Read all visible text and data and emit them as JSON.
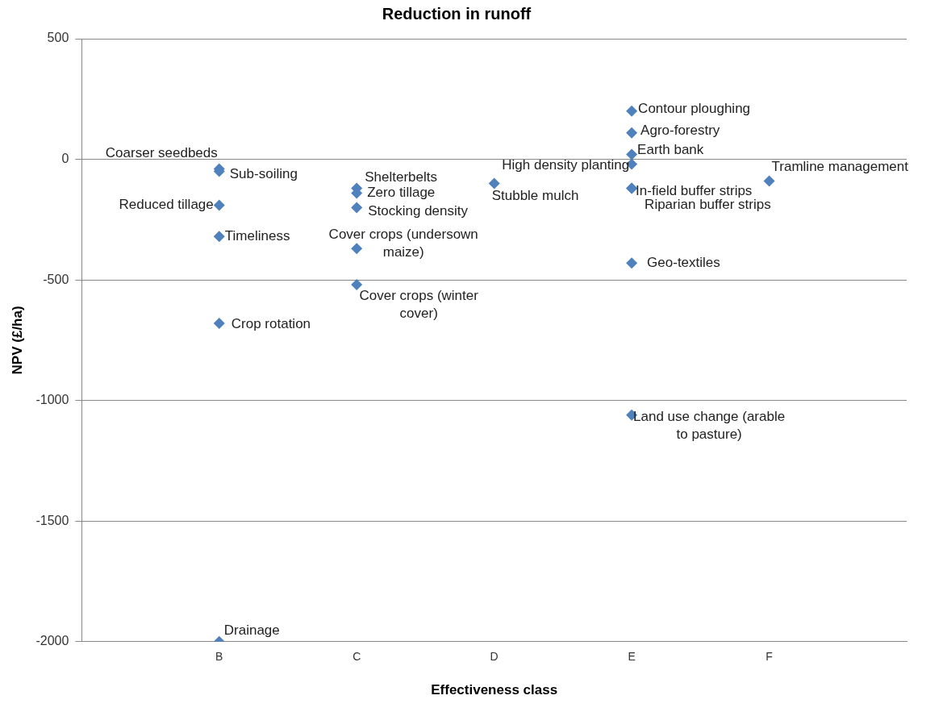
{
  "chart_data": {
    "type": "scatter",
    "title": "Reduction in runoff",
    "xlabel": "Effectiveness class",
    "ylabel": "NPV (£/ha)",
    "categories": [
      null,
      "B",
      "C",
      "D",
      "E",
      "F",
      null
    ],
    "ylim": [
      -2000,
      500
    ],
    "yticks": [
      -2000,
      -1500,
      -1000,
      -500,
      0,
      500
    ],
    "grid": "y",
    "legend": false,
    "marker": "diamond",
    "series": [
      {
        "color": "#4f81bd",
        "x": [
          "B",
          "B",
          "B",
          "B",
          "B",
          "B",
          "C",
          "C",
          "C",
          "C",
          "C",
          "D",
          "E",
          "E",
          "E",
          "E",
          "E",
          "E",
          "E",
          "E",
          "F"
        ],
        "values": [
          -40,
          -50,
          -190,
          -320,
          -680,
          -2000,
          -120,
          -140,
          -200,
          -370,
          -520,
          -100,
          -20,
          200,
          110,
          20,
          -120,
          -120,
          -430,
          -1060,
          -90
        ]
      }
    ],
    "annotations": [
      {
        "text": "Coarser seedbeds",
        "x": "B",
        "y": -40
      },
      {
        "text": "Sub-soiling",
        "x": "B",
        "y": -50
      },
      {
        "text": "Reduced tillage",
        "x": "B",
        "y": -190
      },
      {
        "text": "Timeliness",
        "x": "B",
        "y": -320
      },
      {
        "text": "Crop rotation",
        "x": "B",
        "y": -680
      },
      {
        "text": "Drainage",
        "x": "B",
        "y": -2000
      },
      {
        "text": "Shelterbelts",
        "x": "C",
        "y": -120
      },
      {
        "text": "Zero tillage",
        "x": "C",
        "y": -140
      },
      {
        "text": "Stocking density",
        "x": "C",
        "y": -200
      },
      {
        "text": "Cover crops (undersown maize)",
        "x": "C",
        "y": -370
      },
      {
        "text": "Cover crops (winter cover)",
        "x": "C",
        "y": -520
      },
      {
        "text": "Stubble mulch",
        "x": "D",
        "y": -100
      },
      {
        "text": "High density planting",
        "x": "E",
        "y": -20
      },
      {
        "text": "Contour ploughing",
        "x": "E",
        "y": 200
      },
      {
        "text": "Agro-forestry",
        "x": "E",
        "y": 110
      },
      {
        "text": "Earth bank",
        "x": "E",
        "y": 20
      },
      {
        "text": "In-field buffer strips",
        "x": "E",
        "y": -120
      },
      {
        "text": "Riparian buffer strips",
        "x": "E",
        "y": -120
      },
      {
        "text": "Geo-textiles",
        "x": "E",
        "y": -430
      },
      {
        "text": "Land use change (arable to pasture)",
        "x": "E",
        "y": -1060
      },
      {
        "text": "Tramline management",
        "x": "F",
        "y": -90
      }
    ]
  }
}
